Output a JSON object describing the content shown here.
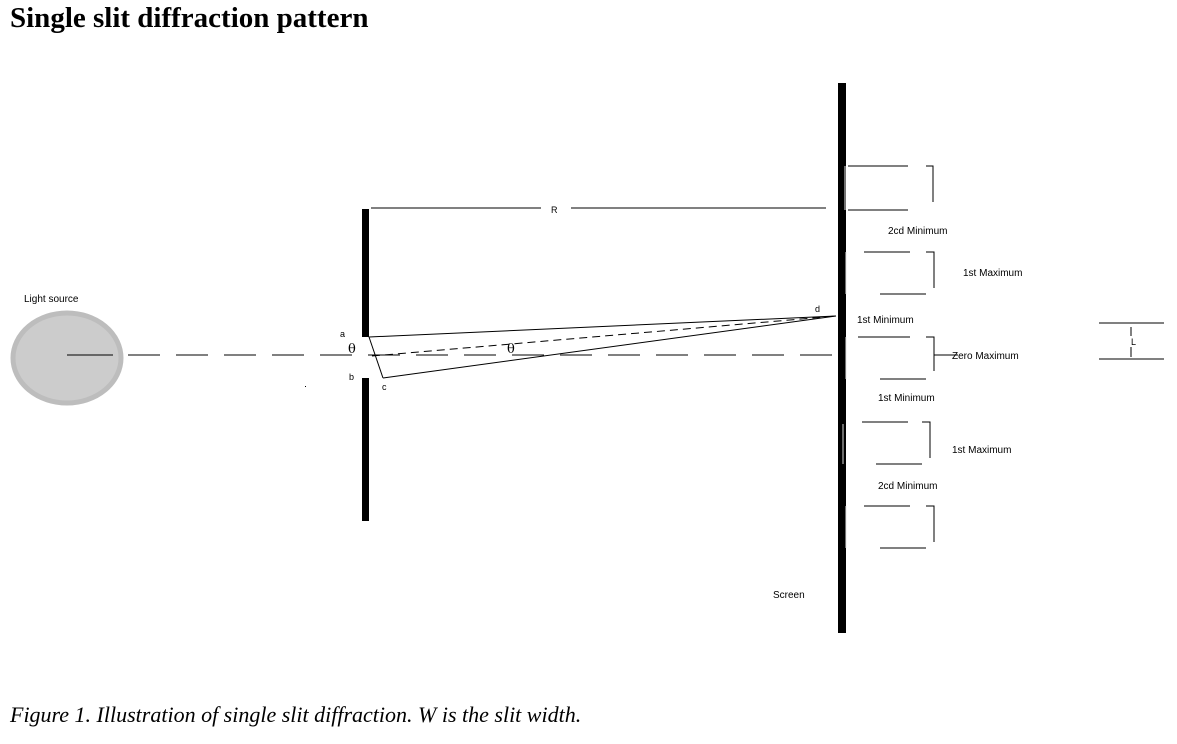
{
  "title": "Single slit diffraction pattern",
  "caption": "Figure 1. Illustration of single slit diffraction. W is the slit width.",
  "labels": {
    "light_source": "Light source",
    "point_a": "a",
    "point_b": "b",
    "point_c": "c",
    "point_d": "d",
    "distance_r": "R",
    "angle_slit": "θ",
    "angle_path": "θ",
    "screen": "Screen",
    "scale_l": "L"
  },
  "pattern": [
    {
      "kind": "minimum",
      "label": "2cd Minimum"
    },
    {
      "kind": "maximum",
      "label": "1st Maximum"
    },
    {
      "kind": "minimum",
      "label": "1st Minimum"
    },
    {
      "kind": "maximum",
      "label": "Zero Maximum"
    },
    {
      "kind": "minimum",
      "label": "1st Minimum"
    },
    {
      "kind": "maximum",
      "label": "1st Maximum"
    },
    {
      "kind": "minimum",
      "label": "2cd Minimum"
    }
  ],
  "colors": {
    "ink": "#000000",
    "source_fill": "#cccccc",
    "source_stroke": "#bdbdbd"
  }
}
